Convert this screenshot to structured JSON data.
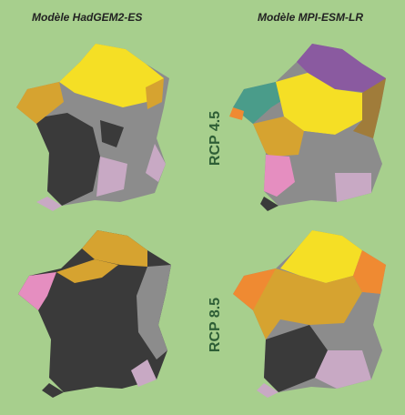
{
  "header": {
    "left_model": "Modèle HadGEM2-ES",
    "right_model": "Modèle MPI-ESM-LR"
  },
  "rows": {
    "top_scenario": "RCP 4.5",
    "bottom_scenario": "RCP 8.5"
  },
  "colors": {
    "background": "#a7cf8d",
    "heading_text": "#2e5e36",
    "dark": "#3a3a3a",
    "grey": "#8c8c8c",
    "light_purple": "#c8a9c4",
    "pink": "#e58ec0",
    "yellow": "#f5df25",
    "ochre": "#d6a330",
    "orange": "#ef8a32",
    "teal": "#4a9c8a",
    "purple": "#8a5aa0",
    "brown": "#a07c3a"
  }
}
